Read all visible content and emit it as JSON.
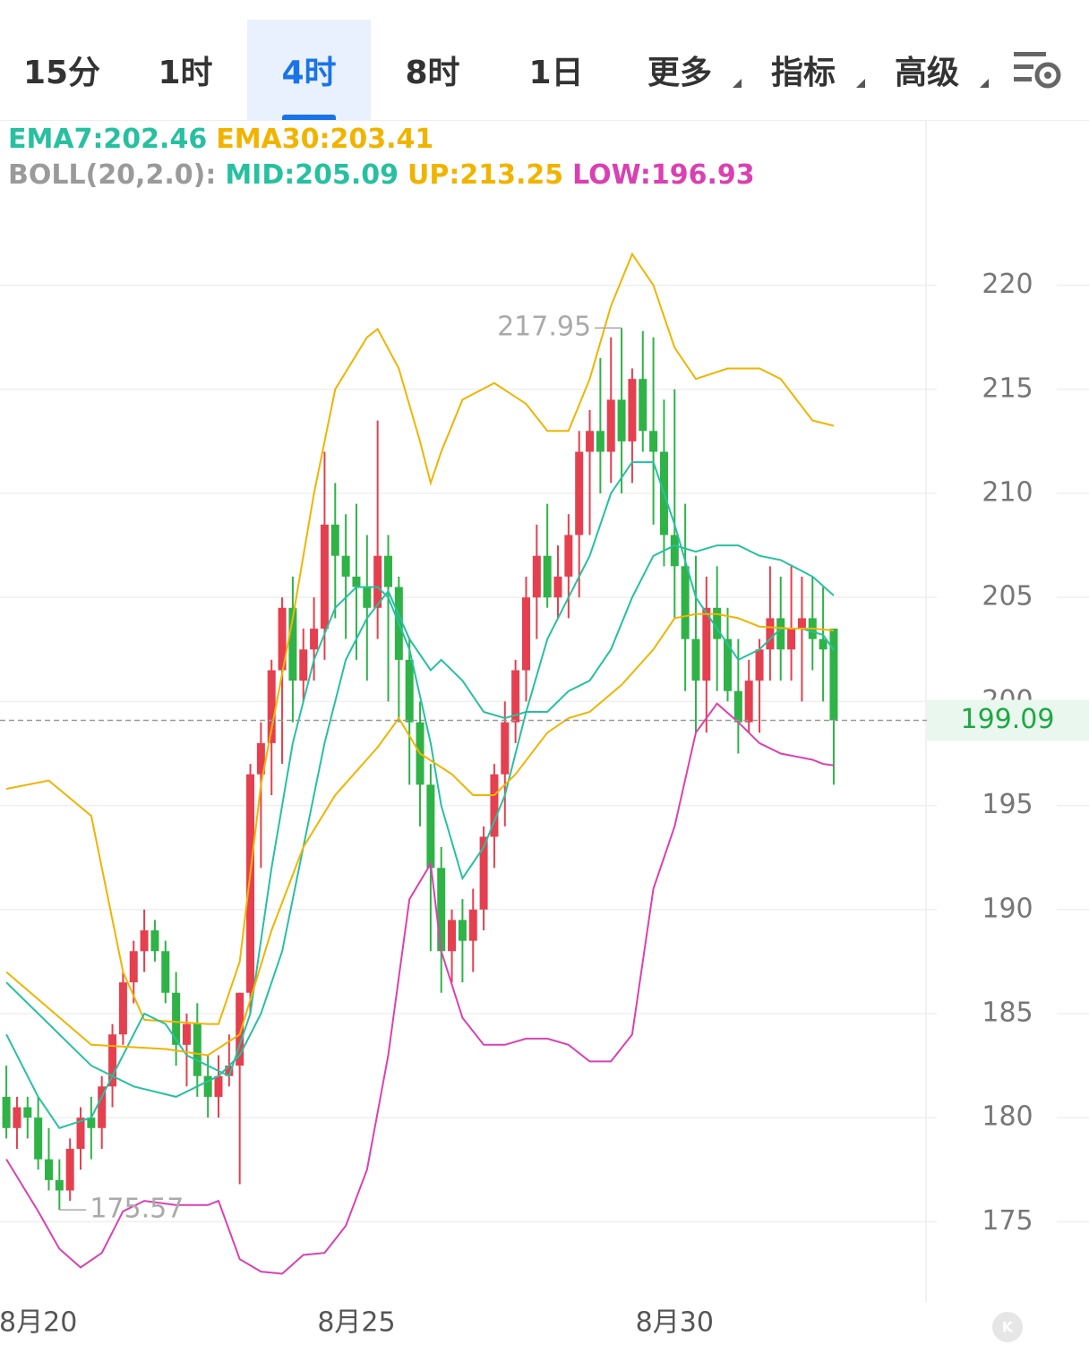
{
  "tabs": {
    "items": [
      "15分",
      "1时",
      "4时",
      "8时",
      "1日",
      "更多",
      "指标",
      "高级"
    ],
    "active": 2,
    "dropdown": [
      5,
      6,
      7
    ]
  },
  "legend": [
    [
      {
        "text": "EMA7:202.46",
        "color": "#27c0a0"
      },
      {
        "text": "EMA30:203.41",
        "color": "#f0b400"
      }
    ],
    [
      {
        "text": "BOLL(20,2.0):",
        "color": "#9a9a9a"
      },
      {
        "text": "MID:205.09",
        "color": "#27c0a0"
      },
      {
        "text": "UP:213.25",
        "color": "#f0b400"
      },
      {
        "text": "LOW:196.93",
        "color": "#d941b2"
      }
    ]
  ],
  "chart_data": {
    "type": "candlestick",
    "up_color": "#e5404f",
    "down_color": "#2fb347",
    "open": [
      181,
      179.5,
      180.5,
      180,
      178,
      177,
      176.5,
      178.5,
      180,
      179.5,
      181.5,
      184,
      186.5,
      188,
      189,
      188,
      186,
      183.5,
      184.5,
      182,
      181,
      182,
      182.5,
      186,
      196.5,
      198,
      201.5,
      204.5,
      201,
      202.5,
      203.5,
      208.5,
      207,
      206,
      205.5,
      204.5,
      207,
      205.5,
      202,
      199,
      196,
      192,
      188,
      189.5,
      188.5,
      190,
      193.5,
      196.5,
      199,
      201.5,
      205,
      207,
      205,
      206,
      208,
      212,
      213,
      212,
      214.5,
      212.5,
      215.5,
      213,
      212,
      208,
      206.5,
      203,
      201,
      204.5,
      203,
      200.5,
      199,
      201,
      202.5,
      204,
      202.5,
      203.5,
      204,
      203,
      203.5
    ],
    "high": [
      182.5,
      181,
      181,
      181,
      179.5,
      178,
      179,
      180.5,
      181,
      182,
      184.5,
      187,
      188.5,
      190,
      189.5,
      188.5,
      187,
      185,
      185.5,
      183,
      183,
      184,
      186,
      197,
      199,
      202,
      205,
      206,
      203.5,
      205,
      212,
      210.5,
      209,
      209.5,
      208,
      213.5,
      208,
      206,
      203,
      200,
      197,
      193,
      190,
      190.5,
      191,
      194,
      197,
      200,
      202,
      206,
      208.5,
      209.5,
      207.5,
      209,
      213,
      214,
      216.5,
      217.5,
      217.95,
      216,
      217.8,
      217.5,
      214.5,
      215,
      209.5,
      207,
      206,
      206.5,
      204.5,
      203,
      202,
      203,
      206.5,
      206,
      206.5,
      206,
      206,
      205.5,
      203.5
    ],
    "low": [
      179,
      178.5,
      179,
      177.5,
      176.5,
      175.57,
      176,
      177.5,
      178,
      178.5,
      180.5,
      183.5,
      185.5,
      187,
      187.5,
      185.5,
      182.5,
      181.5,
      181,
      180,
      180,
      181.5,
      176.8,
      185,
      192,
      195.5,
      197,
      199,
      200,
      201,
      202,
      204,
      203,
      202,
      201,
      203,
      200,
      199,
      196,
      194,
      188,
      186,
      186.5,
      186.5,
      187,
      189,
      192,
      194,
      198,
      200,
      203,
      204.5,
      204,
      204,
      205,
      208,
      210,
      210.5,
      210,
      210.5,
      212,
      208.5,
      206.5,
      204,
      200.5,
      198.5,
      198.5,
      200.5,
      200,
      197.5,
      198.5,
      198.5,
      201,
      201,
      201,
      200,
      201.5,
      200,
      196
    ],
    "close": [
      179.5,
      180.5,
      180,
      178,
      177,
      176.5,
      178.5,
      180,
      179.5,
      181.5,
      184,
      186.5,
      188,
      189,
      188,
      186,
      183.5,
      184.5,
      182,
      181,
      182,
      182.5,
      186,
      196.5,
      198,
      201.5,
      204.5,
      201,
      202.5,
      203.5,
      208.5,
      207,
      206,
      205.5,
      204.5,
      207,
      205.5,
      202,
      199,
      196,
      192,
      188,
      189.5,
      188.5,
      190,
      193.5,
      196.5,
      199,
      201.5,
      205,
      207,
      205,
      206,
      208,
      212,
      213,
      212,
      214.5,
      212.5,
      215.5,
      213,
      212,
      208,
      206.5,
      203,
      201,
      204.5,
      203,
      200.5,
      199,
      201,
      202.5,
      204,
      202.5,
      203.5,
      204,
      203,
      202.5,
      199.09
    ],
    "series": [
      {
        "color": "#f0b400",
        "x": [
          0,
          4,
          8,
          11,
          13,
          16,
          19,
          20,
          22,
          24,
          27,
          29,
          31,
          34,
          35,
          37,
          39,
          40,
          41,
          43,
          46,
          49,
          51,
          53,
          55,
          57,
          59,
          61,
          63,
          65,
          68,
          71,
          73,
          76,
          78
        ],
        "values": [
          195.8,
          196.2,
          194.5,
          187,
          184.7,
          184.6,
          184.5,
          184.5,
          187.5,
          196,
          204,
          210,
          215,
          217.5,
          217.9,
          216,
          212.5,
          210.5,
          212,
          214.5,
          215.3,
          214.3,
          213,
          213,
          215.5,
          219,
          221.5,
          220,
          217,
          215.5,
          216,
          216,
          215.5,
          213.5,
          213.25
        ]
      },
      {
        "color": "#d941b2",
        "x": [
          0,
          3,
          5,
          7,
          9,
          11,
          13,
          16,
          19,
          20,
          22,
          24,
          26,
          28,
          30,
          32,
          34,
          36,
          38,
          40,
          41,
          43,
          45,
          47,
          49,
          51,
          53,
          55,
          57,
          59,
          61,
          63,
          65,
          67,
          69,
          71,
          73,
          76,
          77,
          78
        ],
        "values": [
          178,
          175.5,
          173.7,
          172.8,
          173.5,
          175.5,
          176,
          175.8,
          175.8,
          176,
          173.2,
          172.6,
          172.5,
          173.4,
          173.5,
          174.8,
          177.5,
          183,
          190.5,
          192.2,
          188,
          184.8,
          183.5,
          183.5,
          183.8,
          183.8,
          183.5,
          182.7,
          182.7,
          184,
          191,
          194,
          198.5,
          199.9,
          199,
          198,
          197.5,
          197.2,
          197,
          196.93
        ]
      },
      {
        "color": "#27c0a0",
        "x": [
          0,
          5,
          8,
          12,
          16,
          20,
          22,
          24,
          26,
          28,
          30,
          32,
          34,
          36,
          38,
          40,
          41,
          43,
          45,
          47,
          49,
          51,
          53,
          55,
          57,
          59,
          61,
          63,
          65,
          67,
          69,
          71,
          73,
          76,
          78
        ],
        "values": [
          186.5,
          184,
          182.5,
          181.5,
          181,
          182,
          183,
          185,
          188,
          193,
          198,
          202,
          204,
          205.3,
          203,
          201.5,
          202,
          201,
          199.5,
          199.2,
          199.5,
          199.5,
          200.5,
          201,
          202.5,
          205,
          207,
          207.5,
          207.2,
          207.5,
          207.5,
          207,
          206.8,
          206,
          205.09
        ]
      },
      {
        "color": "#27c0a0",
        "x": [
          0,
          3,
          5,
          8,
          10,
          12,
          13,
          15,
          17,
          19,
          21,
          23,
          25,
          27,
          29,
          31,
          33,
          35,
          36,
          38,
          40,
          41,
          43,
          45,
          47,
          49,
          51,
          53,
          55,
          57,
          59,
          61,
          63,
          65,
          67,
          69,
          71,
          73,
          75,
          77,
          78
        ],
        "values": [
          184,
          181,
          179.5,
          180,
          182,
          184,
          185,
          184.5,
          183,
          182.5,
          182,
          185,
          192,
          198,
          202,
          204.5,
          205.5,
          205.5,
          205,
          202.5,
          198,
          195,
          191.5,
          193,
          195.5,
          199.5,
          203,
          205,
          207,
          210,
          211.5,
          211.5,
          208.5,
          205,
          203.5,
          202,
          202.5,
          203.5,
          203.5,
          203.2,
          202.46
        ]
      },
      {
        "color": "#f0b400",
        "x": [
          0,
          8,
          15,
          19,
          22,
          25,
          28,
          31,
          35,
          37,
          39,
          42,
          44,
          46,
          48,
          51,
          53,
          55,
          58,
          61,
          63,
          65,
          67,
          69,
          71,
          74,
          76,
          78
        ],
        "values": [
          187,
          183.5,
          183.3,
          183,
          184,
          189,
          193,
          195.5,
          197.8,
          199.2,
          197.5,
          196.5,
          195.5,
          195.5,
          196.5,
          198.5,
          199.2,
          199.5,
          200.8,
          202.5,
          204,
          204.2,
          204.2,
          204,
          203.6,
          203.5,
          203.5,
          203.41
        ]
      }
    ],
    "annotations": [
      {
        "x": 58,
        "value": 217.95
      },
      {
        "x": 5,
        "value": 175.57
      }
    ],
    "xlim": [
      -0.6,
      86.7
    ],
    "ylim": [
      171.1,
      227.9
    ],
    "yticks": [
      175,
      180,
      185,
      190,
      195,
      200,
      205,
      210,
      215,
      220
    ],
    "xticks": [
      {
        "value": 3,
        "label": "8月20"
      },
      {
        "value": 33,
        "label": "8月25"
      },
      {
        "value": 63,
        "label": "8月30"
      }
    ],
    "grid": true
  }
}
